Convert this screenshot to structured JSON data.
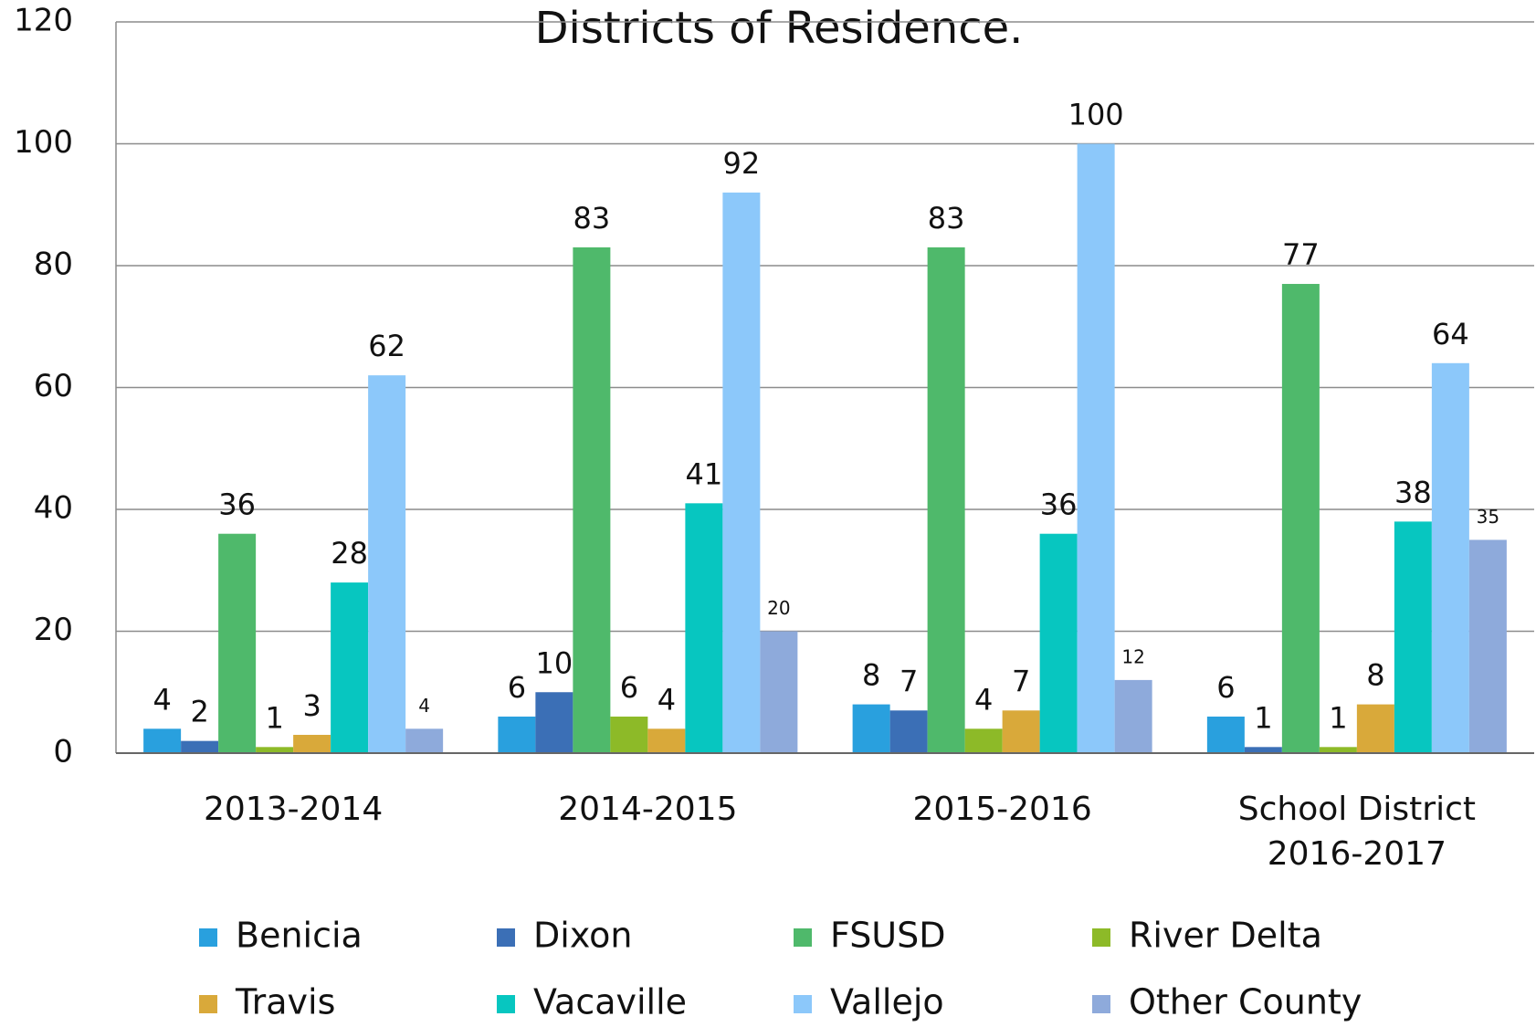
{
  "chart_data": {
    "type": "bar",
    "title": "Districts of Residence.",
    "categories": [
      "2013-2014",
      "2014-2015",
      "2015-2016",
      "School District 2016-2017"
    ],
    "series": [
      {
        "name": "Benicia",
        "color": "#29a0de",
        "values": [
          4,
          6,
          8,
          6
        ]
      },
      {
        "name": "Dixon",
        "color": "#3b6fb6",
        "values": [
          2,
          10,
          7,
          1
        ]
      },
      {
        "name": "FSUSD",
        "color": "#4fb96b",
        "values": [
          36,
          83,
          83,
          77
        ]
      },
      {
        "name": "River Delta",
        "color": "#8dba28",
        "values": [
          1,
          6,
          4,
          1
        ]
      },
      {
        "name": "Travis",
        "color": "#d9a93a",
        "values": [
          3,
          4,
          7,
          8
        ]
      },
      {
        "name": "Vacaville",
        "color": "#07c6c0",
        "values": [
          28,
          41,
          36,
          38
        ]
      },
      {
        "name": "Vallejo",
        "color": "#8cc8fa",
        "values": [
          62,
          92,
          100,
          64
        ]
      },
      {
        "name": "Other County",
        "color": "#8eaadb",
        "values": [
          4,
          20,
          12,
          35
        ]
      }
    ],
    "ylim": [
      0,
      120
    ],
    "yticks": [
      0,
      20,
      40,
      60,
      80,
      100,
      120
    ],
    "grid": true
  }
}
